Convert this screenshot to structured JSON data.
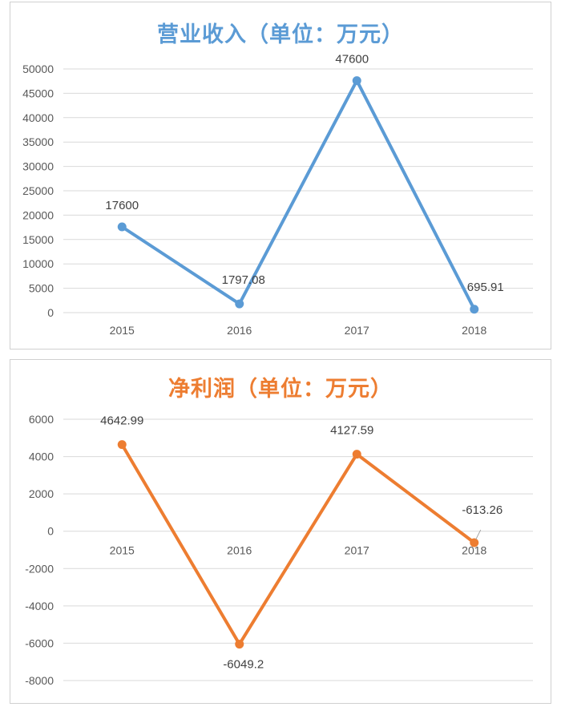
{
  "chart_data": [
    {
      "type": "line",
      "title": "营业收入（单位：万元）",
      "color": "#5b9bd5",
      "categories": [
        "2015",
        "2016",
        "2017",
        "2018"
      ],
      "values": [
        17600,
        1797.08,
        47600,
        695.91
      ],
      "data_labels": [
        "17600",
        "1797.08",
        "47600",
        "695.91"
      ],
      "ylim": [
        0,
        50000
      ],
      "yticks": [
        0,
        5000,
        10000,
        15000,
        20000,
        25000,
        30000,
        35000,
        40000,
        45000,
        50000
      ],
      "grid": true,
      "legend": "none"
    },
    {
      "type": "line",
      "title": "净利润（单位：万元）",
      "color": "#ed7d31",
      "categories": [
        "2015",
        "2016",
        "2017",
        "2018"
      ],
      "values": [
        4642.99,
        -6049.2,
        4127.59,
        -613.26
      ],
      "data_labels": [
        "4642.99",
        "-6049.2",
        "4127.59",
        "-613.26"
      ],
      "ylim": [
        -8000,
        6000
      ],
      "yticks": [
        -8000,
        -6000,
        -4000,
        -2000,
        0,
        2000,
        4000,
        6000
      ],
      "grid": true,
      "legend": "none"
    }
  ]
}
